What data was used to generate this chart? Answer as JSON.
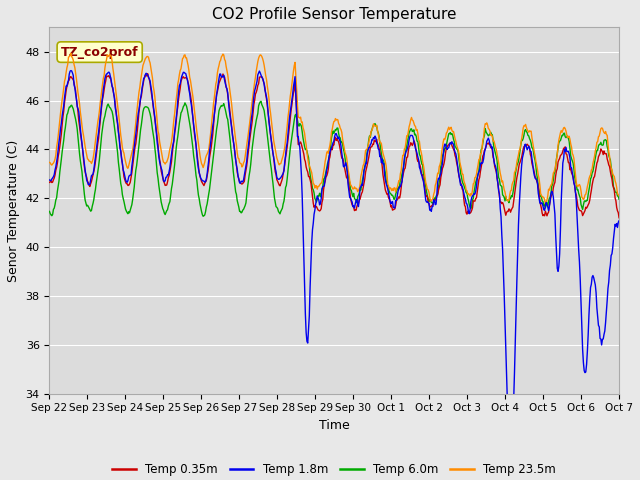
{
  "title": "CO2 Profile Sensor Temperature",
  "ylabel": "Senor Temperature (C)",
  "xlabel": "Time",
  "annotation_text": "TZ_co2prof",
  "annotation_color": "#8B0000",
  "annotation_bg": "#FFFFCC",
  "ylim": [
    34,
    49
  ],
  "yticks": [
    34,
    36,
    38,
    40,
    42,
    44,
    46,
    48
  ],
  "fig_bg_color": "#E8E8E8",
  "plot_bg_color": "#DCDCDC",
  "legend_entries": [
    "Temp 0.35m",
    "Temp 1.8m",
    "Temp 6.0m",
    "Temp 23.5m"
  ],
  "line_colors": [
    "#CC0000",
    "#0000EE",
    "#00AA00",
    "#FF8C00"
  ],
  "line_width": 1.0,
  "tick_labels": [
    "Sep 22",
    "Sep 23",
    "Sep 24",
    "Sep 25",
    "Sep 26",
    "Sep 27",
    "Sep 28",
    "Sep 29",
    "Sep 30",
    "Oct 1",
    "Oct 2",
    "Oct 3",
    "Oct 4",
    "Oct 5",
    "Oct 6",
    "Oct 7"
  ],
  "n_days": 15,
  "seed": 42
}
